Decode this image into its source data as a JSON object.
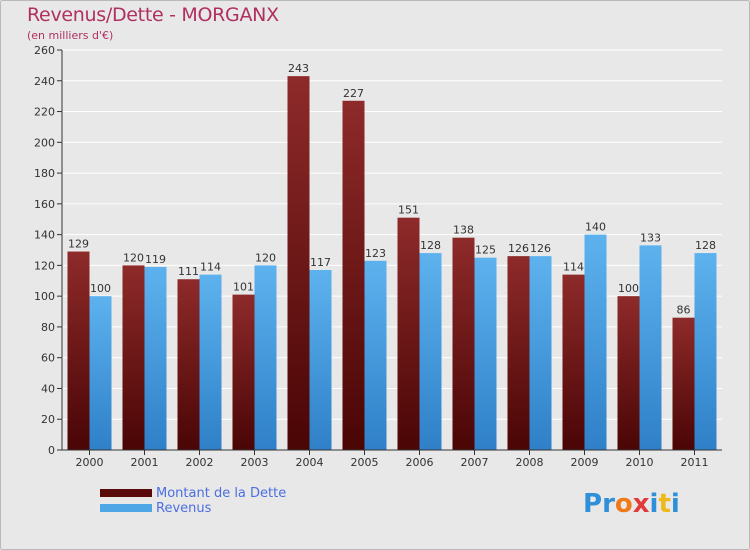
{
  "colors": {
    "debt": "#7b1a1a",
    "revenue": "#4fa6e6",
    "title": "#b03060",
    "legend_text": "#4a6ee0",
    "grid": "#ffffff",
    "background": "#e8e8e8"
  },
  "logo": {
    "text": "Proxiti",
    "letter_colors": [
      "#2f8fd8",
      "#2f8fd8",
      "#f07a1a",
      "#e23a3a",
      "#2f8fd8",
      "#f0b81a",
      "#2f8fd8"
    ]
  },
  "chart_data": {
    "type": "bar",
    "title": "Revenus/Dette - MORGANX",
    "subtitle": "(en milliers d'€)",
    "xlabel": "",
    "ylabel": "",
    "ylim": [
      0,
      260
    ],
    "yticks": [
      0,
      20,
      40,
      60,
      80,
      100,
      120,
      140,
      160,
      180,
      200,
      220,
      240,
      260
    ],
    "grid": true,
    "legend_position": "bottom-left",
    "categories": [
      "2000",
      "2001",
      "2002",
      "2003",
      "2004",
      "2005",
      "2006",
      "2007",
      "2008",
      "2009",
      "2010",
      "2011"
    ],
    "series": [
      {
        "name": "Montant de la Dette",
        "color": "#7b1a1a",
        "values": [
          129,
          120,
          111,
          101,
          243,
          227,
          151,
          138,
          126,
          114,
          100,
          86
        ]
      },
      {
        "name": "Revenus",
        "color": "#4fa6e6",
        "values": [
          100,
          119,
          114,
          120,
          117,
          123,
          128,
          125,
          126,
          140,
          133,
          128
        ]
      }
    ]
  }
}
